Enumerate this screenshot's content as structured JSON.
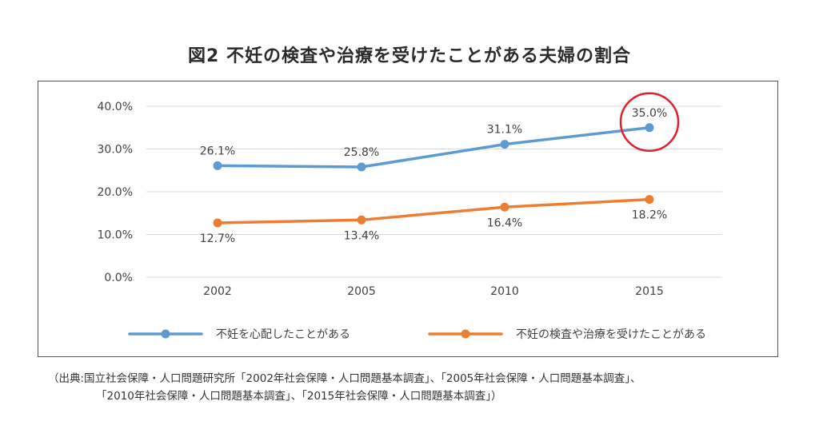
{
  "title": "図2 不妊の検査や治療を受けたことがある夫婦の割合",
  "chart_data": {
    "type": "line",
    "categories": [
      "2002",
      "2005",
      "2010",
      "2015"
    ],
    "ylim": [
      0,
      40
    ],
    "yticks": [
      "0.0%",
      "10.0%",
      "20.0%",
      "30.0%",
      "40.0%"
    ],
    "grid": true,
    "legend_placement": "bottom",
    "series": [
      {
        "name": "不妊を心配したことがある",
        "values": [
          26.1,
          25.8,
          31.1,
          35.0
        ],
        "labels": [
          "26.1%",
          "25.8%",
          "31.1%",
          "35.0%"
        ],
        "color": "#5b9bd5",
        "label_position": "above"
      },
      {
        "name": "不妊の検査や治療を受けたことがある",
        "values": [
          12.7,
          13.4,
          16.4,
          18.2
        ],
        "labels": [
          "12.7%",
          "13.4%",
          "16.4%",
          "18.2%"
        ],
        "color": "#ed7d31",
        "label_position": "below"
      }
    ],
    "annotation": {
      "type": "circle",
      "target_series": 0,
      "target_index": 3,
      "color": "#e0202a"
    }
  },
  "source": {
    "line1": "（出典:国立社会保障・人口問題研究所「2002年社会保障・人口問題基本調査」、「2005年社会保障・人口問題基本調査」、",
    "line2": "「2010年社会保障・人口問題基本調査」、「2015年社会保障・人口問題基本調査」）"
  }
}
